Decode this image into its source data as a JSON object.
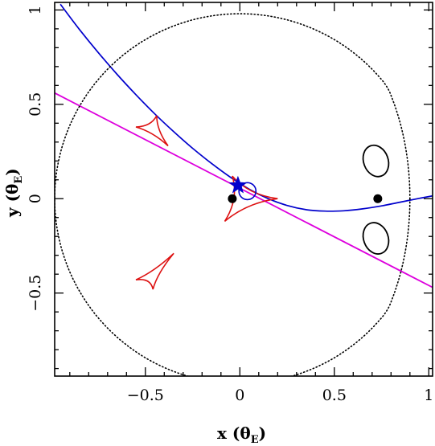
{
  "chart_data": {
    "type": "line",
    "title": "",
    "xlabel": {
      "text": "x (θ",
      "sub": "E",
      "close": ")"
    },
    "ylabel": {
      "text": "y (θ",
      "sub": "E",
      "close": ")"
    },
    "xlim": [
      -0.98,
      1.02
    ],
    "ylim": [
      -0.94,
      1.04
    ],
    "xticks": [
      -0.5,
      0,
      0.5,
      1
    ],
    "xtick_labels": [
      "−0.5",
      "0",
      "0.5",
      "1"
    ],
    "yticks": [
      -0.5,
      0,
      0.5,
      1
    ],
    "ytick_labels": [
      "−0.5",
      "0",
      "0.5",
      "1"
    ],
    "grid": false,
    "colors": {
      "trajectory": "#0000cc",
      "axis_line": "#dd00dd",
      "caustics": "#dd1111",
      "critical": "#000000",
      "source": "#0000cc"
    },
    "series": [
      {
        "kind": "source-trajectory",
        "color": "#0000cc",
        "x": [
          -0.95,
          -0.85,
          -0.75,
          -0.65,
          -0.55,
          -0.45,
          -0.35,
          -0.25,
          -0.15,
          -0.05,
          0.05,
          0.15,
          0.25,
          0.35,
          0.45,
          0.55,
          0.65,
          0.75,
          0.85,
          0.95,
          1.02
        ],
        "y": [
          1.03,
          0.898,
          0.775,
          0.659,
          0.551,
          0.449,
          0.355,
          0.267,
          0.187,
          0.114,
          0.05,
          0.0,
          -0.036,
          -0.058,
          -0.066,
          -0.064,
          -0.054,
          -0.038,
          -0.018,
          0.002,
          0.015
        ]
      },
      {
        "kind": "binary-axis",
        "color": "#dd00dd",
        "x": [
          -0.98,
          1.02
        ],
        "y": [
          0.56,
          -0.47
        ]
      },
      {
        "kind": "caustic-upper-left",
        "color": "#dd1111",
        "cusps_x": [
          -0.44,
          -0.55,
          -0.38
        ],
        "cusps_y": [
          0.44,
          0.38,
          0.28
        ]
      },
      {
        "kind": "caustic-central",
        "color": "#dd1111",
        "cusps_x": [
          -0.04,
          -0.08,
          0.2
        ],
        "cusps_y": [
          0.12,
          -0.12,
          0.0
        ]
      },
      {
        "kind": "caustic-lower-left",
        "color": "#dd1111",
        "cusps_x": [
          -0.55,
          -0.35,
          -0.46
        ],
        "cusps_y": [
          -0.43,
          -0.29,
          -0.48
        ]
      },
      {
        "kind": "critical-curve-outer",
        "color": "#000000",
        "style": "dotted"
      },
      {
        "kind": "critical-curve-small-upper",
        "color": "#000000",
        "center": [
          0.72,
          0.2
        ],
        "rx": 0.065,
        "ry": 0.085
      },
      {
        "kind": "critical-curve-small-lower",
        "color": "#000000",
        "center": [
          0.72,
          -0.21
        ],
        "rx": 0.065,
        "ry": 0.085
      },
      {
        "kind": "small-circle",
        "color": "#0000cc",
        "center": [
          0.04,
          0.04
        ],
        "r": 0.045
      },
      {
        "kind": "lens-masses",
        "color": "#000000",
        "x": [
          -0.04,
          0.73
        ],
        "y": [
          0.0,
          0.0
        ]
      },
      {
        "kind": "source-star",
        "color": "#0000cc",
        "x": [
          -0.01
        ],
        "y": [
          0.07
        ]
      }
    ]
  }
}
